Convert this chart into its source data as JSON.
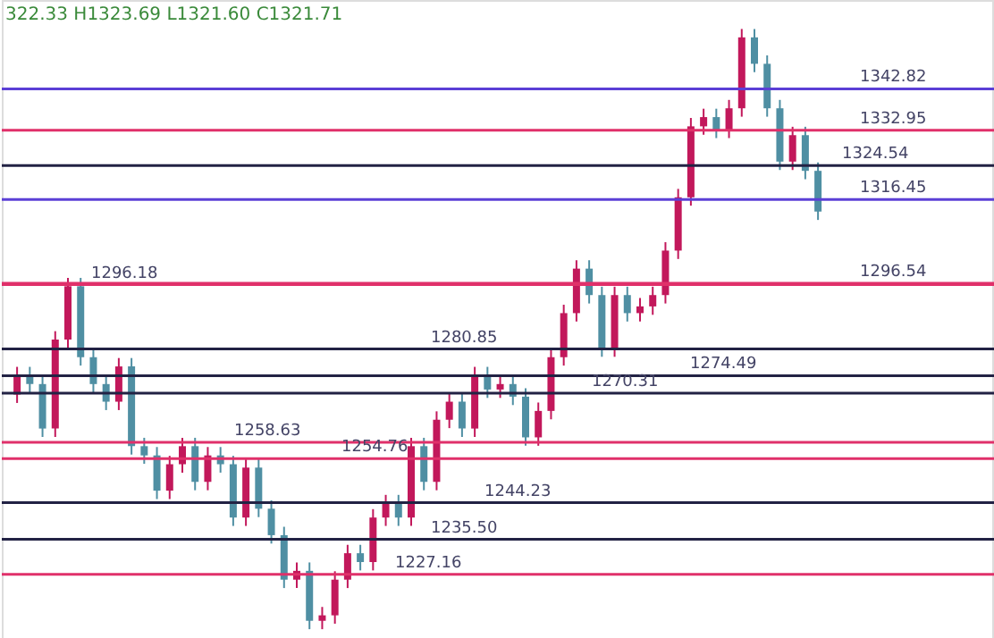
{
  "chart_data": {
    "type": "candlestick",
    "categories": [
      null,
      null,
      null,
      null,
      null,
      null,
      null,
      null,
      null,
      null,
      null,
      null,
      null,
      null,
      null,
      null,
      null,
      null,
      null,
      null,
      null,
      null,
      null,
      null,
      null,
      null,
      null,
      null,
      null,
      null,
      null,
      null,
      null,
      null,
      null,
      null,
      null,
      null,
      null,
      null,
      null,
      null,
      null,
      null,
      null,
      null,
      null,
      null,
      null,
      null,
      null,
      null,
      null,
      null,
      null,
      null,
      null,
      null,
      null,
      null,
      null,
      null,
      null,
      null
    ],
    "ohlc": [
      [
        1270,
        1276.6,
        1268,
        1274.6
      ],
      [
        1274.6,
        1276.6,
        1270.5,
        1272.5
      ],
      [
        1272.5,
        1274.5,
        1259.9,
        1261.9
      ],
      [
        1261.9,
        1285.1,
        1259.9,
        1283.1
      ],
      [
        1283.1,
        1297.8,
        1281.1,
        1295.8
      ],
      [
        1295.8,
        1297.8,
        1276.9,
        1278.9
      ],
      [
        1278.9,
        1280.9,
        1270.5,
        1272.5
      ],
      [
        1272.5,
        1274.5,
        1266.3,
        1268.3
      ],
      [
        1268.3,
        1278.7,
        1266.3,
        1276.7
      ],
      [
        1276.7,
        1278.7,
        1255.7,
        1257.7
      ],
      [
        1257.7,
        1259.7,
        1253.5,
        1255.5
      ],
      [
        1255.5,
        1257.5,
        1245.1,
        1247.1
      ],
      [
        1247.1,
        1255.4,
        1245.1,
        1253.4
      ],
      [
        1253.4,
        1259.7,
        1251.4,
        1257.7
      ],
      [
        1257.7,
        1259.7,
        1247.2,
        1249.2
      ],
      [
        1249.2,
        1257.5,
        1247.2,
        1255.5
      ],
      [
        1255.5,
        1257.5,
        1251.4,
        1253.4
      ],
      [
        1253.4,
        1255.4,
        1238.7,
        1240.7
      ],
      [
        1240.7,
        1254.6,
        1238.7,
        1252.6
      ],
      [
        1252.6,
        1254.6,
        1240.8,
        1242.8
      ],
      [
        1242.8,
        1244.8,
        1234.5,
        1236.5
      ],
      [
        1236.5,
        1238.5,
        1223.9,
        1225.9
      ],
      [
        1225.9,
        1230.0,
        1223.9,
        1228.0
      ],
      [
        1228.0,
        1230.0,
        1214.1,
        1216.1
      ],
      [
        1216.1,
        1219.4,
        1214.1,
        1217.4
      ],
      [
        1217.4,
        1227.9,
        1215.4,
        1225.9
      ],
      [
        1225.9,
        1234.2,
        1223.9,
        1232.2
      ],
      [
        1232.2,
        1234.2,
        1228.1,
        1230.1
      ],
      [
        1230.1,
        1242.7,
        1228.1,
        1240.7
      ],
      [
        1240.7,
        1246.1,
        1238.7,
        1244.1
      ],
      [
        1244.1,
        1246.1,
        1238.7,
        1240.7
      ],
      [
        1240.7,
        1259.7,
        1238.7,
        1257.7
      ],
      [
        1257.7,
        1259.7,
        1247.2,
        1249.2
      ],
      [
        1249.2,
        1266.0,
        1247.2,
        1264.0
      ],
      [
        1264.0,
        1270.3,
        1262.0,
        1268.3
      ],
      [
        1268.3,
        1270.3,
        1259.9,
        1261.9
      ],
      [
        1261.9,
        1276.6,
        1259.9,
        1274.6
      ],
      [
        1274.6,
        1276.6,
        1269.2,
        1271.2
      ],
      [
        1271.2,
        1274.5,
        1269.2,
        1272.5
      ],
      [
        1272.5,
        1274.5,
        1267.5,
        1269.5
      ],
      [
        1269.5,
        1271.5,
        1257.8,
        1259.8
      ],
      [
        1259.8,
        1268.1,
        1257.8,
        1266.1
      ],
      [
        1266.1,
        1280.9,
        1264.1,
        1278.9
      ],
      [
        1278.9,
        1291.4,
        1276.9,
        1289.4
      ],
      [
        1289.4,
        1302.0,
        1287.4,
        1300.0
      ],
      [
        1300.0,
        1302.0,
        1291.7,
        1293.7
      ],
      [
        1293.7,
        1295.7,
        1279.0,
        1281.0
      ],
      [
        1281.0,
        1295.7,
        1279.0,
        1293.7
      ],
      [
        1293.7,
        1295.7,
        1287.4,
        1289.4
      ],
      [
        1289.4,
        1293.0,
        1287.4,
        1291.0
      ],
      [
        1291.0,
        1295.7,
        1289.0,
        1293.7
      ],
      [
        1293.7,
        1306.3,
        1291.7,
        1304.3
      ],
      [
        1304.3,
        1319.0,
        1302.3,
        1317.0
      ],
      [
        1317.0,
        1335.9,
        1315.0,
        1333.9
      ],
      [
        1333.9,
        1338.1,
        1331.9,
        1336.1
      ],
      [
        1336.1,
        1338.1,
        1331.1,
        1333.1
      ],
      [
        1333.1,
        1340.2,
        1331.1,
        1338.2
      ],
      [
        1338.2,
        1357.1,
        1336.2,
        1355.1
      ],
      [
        1355.1,
        1357.1,
        1346.8,
        1348.8
      ],
      [
        1348.8,
        1350.8,
        1336.2,
        1338.2
      ],
      [
        1338.2,
        1340.2,
        1323.5,
        1325.5
      ],
      [
        1325.5,
        1333.8,
        1323.5,
        1331.8
      ],
      [
        1331.8,
        1333.8,
        1321.3,
        1323.3
      ],
      [
        1323.3,
        1325.3,
        1311.6,
        1313.6
      ]
    ],
    "colors": [
      "#c2185b",
      "#4f8fa3",
      "#4f8fa3",
      "#c2185b",
      "#c2185b",
      "#4f8fa3",
      "#4f8fa3",
      "#4f8fa3",
      "#c2185b",
      "#4f8fa3",
      "#4f8fa3",
      "#4f8fa3",
      "#c2185b",
      "#c2185b",
      "#4f8fa3",
      "#c2185b",
      "#4f8fa3",
      "#4f8fa3",
      "#c2185b",
      "#4f8fa3",
      "#4f8fa3",
      "#4f8fa3",
      "#c2185b",
      "#4f8fa3",
      "#c2185b",
      "#c2185b",
      "#c2185b",
      "#4f8fa3",
      "#c2185b",
      "#c2185b",
      "#4f8fa3",
      "#c2185b",
      "#4f8fa3",
      "#c2185b",
      "#c2185b",
      "#4f8fa3",
      "#c2185b",
      "#4f8fa3",
      "#c2185b",
      "#4f8fa3",
      "#4f8fa3",
      "#c2185b",
      "#c2185b",
      "#c2185b",
      "#c2185b",
      "#4f8fa3",
      "#4f8fa3",
      "#c2185b",
      "#4f8fa3",
      "#c2185b",
      "#c2185b",
      "#c2185b",
      "#c2185b",
      "#c2185b",
      "#c2185b",
      "#4f8fa3",
      "#c2185b",
      "#c2185b",
      "#4f8fa3",
      "#4f8fa3",
      "#4f8fa3",
      "#c2185b",
      "#4f8fa3",
      "#4f8fa3"
    ],
    "ylim": [
      1212,
      1364
    ],
    "tick_labels": false,
    "ref_lines": [
      {
        "axis": "y",
        "value": 1342.82,
        "label": "1342.82",
        "color": "#5b3fd6"
      },
      {
        "axis": "y",
        "value": 1332.95,
        "label": "1332.95",
        "color": "#e0306a"
      },
      {
        "axis": "y",
        "value": 1324.54,
        "label": "1324.54",
        "color": "#222244"
      },
      {
        "axis": "y",
        "value": 1316.45,
        "label": "1316.45",
        "color": "#5b3fd6"
      },
      {
        "axis": "y",
        "value": 1296.54,
        "label": "1296.54",
        "color": "#e0306a"
      },
      {
        "axis": "y",
        "value": 1296.18,
        "label": "1296.18",
        "color": "#e0306a"
      },
      {
        "axis": "y",
        "value": 1280.85,
        "label": "1280.85",
        "color": "#222244"
      },
      {
        "axis": "y",
        "value": 1274.49,
        "label": "1274.49",
        "color": "#222244"
      },
      {
        "axis": "y",
        "value": 1270.31,
        "label": "1270.31",
        "color": "#222244"
      },
      {
        "axis": "y",
        "value": 1258.63,
        "label": "1258.63",
        "color": "#e0306a"
      },
      {
        "axis": "y",
        "value": 1254.76,
        "label": "1254.76",
        "color": "#e0306a"
      },
      {
        "axis": "y",
        "value": 1244.23,
        "label": "1244.23",
        "color": "#222244"
      },
      {
        "axis": "y",
        "value": 1235.5,
        "label": "1235.50",
        "color": "#222244"
      },
      {
        "axis": "y",
        "value": 1227.16,
        "label": "1227.16",
        "color": "#e0306a"
      }
    ],
    "annotations": [
      "322.33  H1323.69  L1321.60  C1321.71"
    ]
  }
}
